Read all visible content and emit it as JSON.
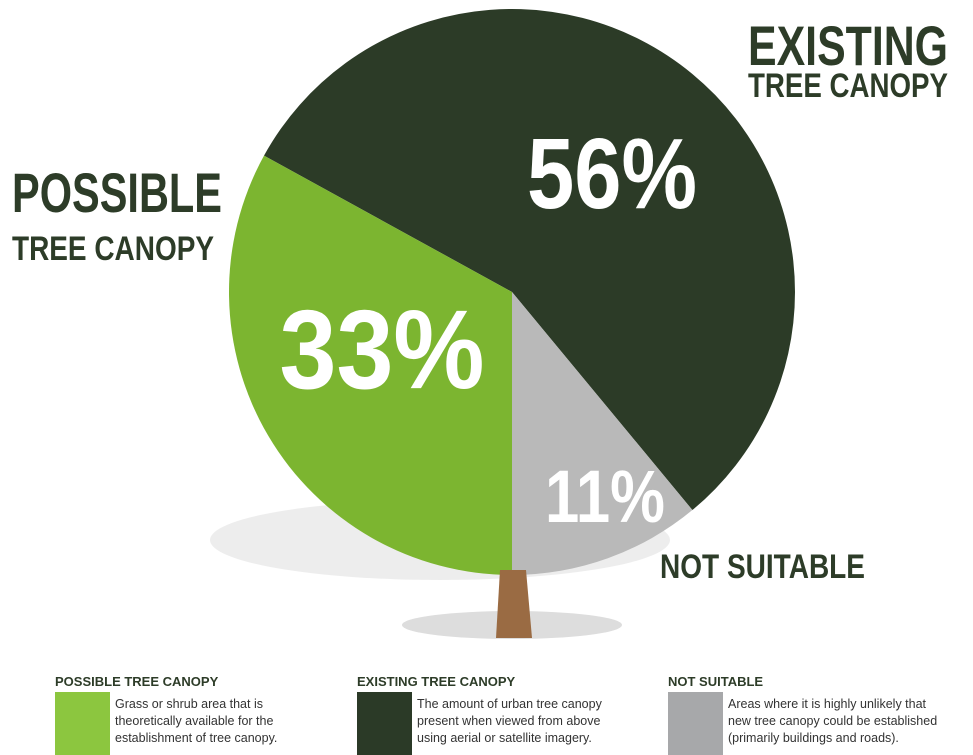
{
  "chart_data": {
    "type": "pie",
    "categories": [
      "EXISTING TREE CANOPY",
      "NOT SUITABLE",
      "POSSIBLE TREE CANOPY"
    ],
    "values": [
      56,
      11,
      33
    ],
    "value_labels": [
      "56%",
      "11%",
      "33%"
    ],
    "colors": [
      "#2c3b27",
      "#b9b9b9",
      "#7cb530"
    ],
    "callouts": [
      [
        "EXISTING",
        "TREE CANOPY"
      ],
      [
        "NOT SUITABLE"
      ],
      [
        "POSSIBLE",
        "TREE CANOPY"
      ]
    ],
    "legend": [
      {
        "title": "POSSIBLE TREE CANOPY",
        "color": "#8cc63f",
        "lines": [
          "Grass or shrub area that is",
          "theoretically available for the",
          "establishment of tree canopy."
        ]
      },
      {
        "title": "EXISTING TREE CANOPY",
        "color": "#2b3a27",
        "lines": [
          "The amount of urban tree canopy",
          "present when viewed from above",
          "using aerial or satellite imagery."
        ]
      },
      {
        "title": "NOT SUITABLE",
        "color": "#a7a8aa",
        "lines": [
          "Areas where it is highly unlikely that",
          "new tree canopy could be established",
          "(primarily buildings and roads)."
        ]
      }
    ]
  }
}
